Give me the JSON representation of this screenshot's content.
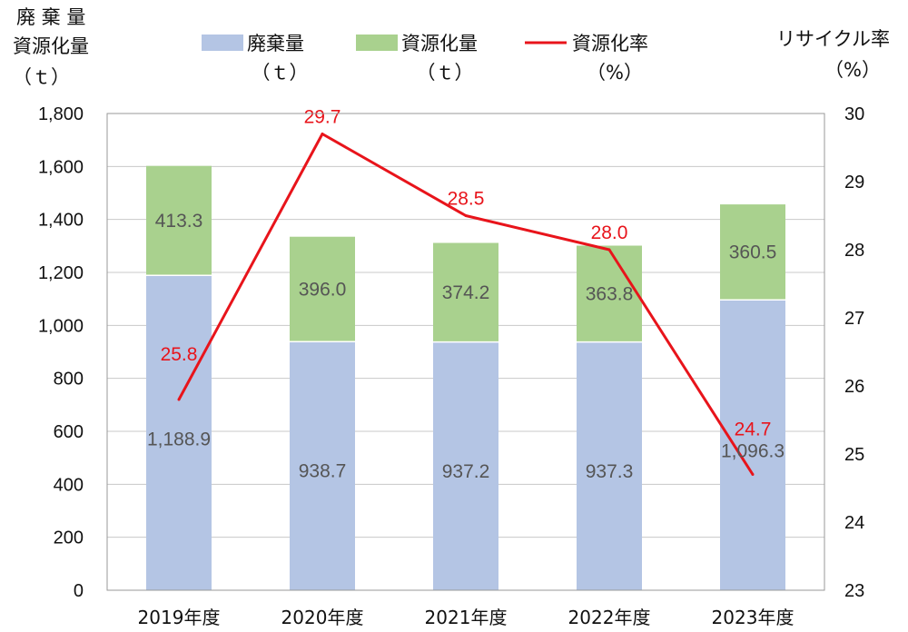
{
  "chart_data": {
    "type": "bar",
    "stacked": true,
    "categories": [
      "2019年度",
      "2020年度",
      "2021年度",
      "2022年度",
      "2023年度"
    ],
    "series": [
      {
        "name": "廃棄量",
        "unit": "（ｔ）",
        "type": "bar",
        "axis": "left",
        "color": "#b4c5e4",
        "values": [
          1188.9,
          938.7,
          937.2,
          937.3,
          1096.3
        ],
        "labels": [
          "1,188.9",
          "938.7",
          "937.2",
          "937.3",
          "1,096.3"
        ]
      },
      {
        "name": "資源化量",
        "unit": "（ｔ）",
        "type": "bar",
        "axis": "left",
        "color": "#a9d18e",
        "values": [
          413.3,
          396.0,
          374.2,
          363.8,
          360.5
        ],
        "labels": [
          "413.3",
          "396.0",
          "374.2",
          "363.8",
          "360.5"
        ]
      },
      {
        "name": "資源化率",
        "unit": "（%）",
        "type": "line",
        "axis": "right",
        "color": "#e8141b",
        "values": [
          25.8,
          29.7,
          28.5,
          28.0,
          24.7
        ],
        "labels": [
          "25.8",
          "29.7",
          "28.5",
          "28.0",
          "24.7"
        ]
      }
    ],
    "left_axis": {
      "title_lines": [
        "廃 棄 量",
        "資源化量",
        "（ｔ）"
      ],
      "ylim": [
        0,
        1800
      ],
      "ticks": [
        "0",
        "200",
        "400",
        "600",
        "800",
        "1,000",
        "1,200",
        "1,400",
        "1,600",
        "1,800"
      ]
    },
    "right_axis": {
      "title_lines": [
        "リサイクル率",
        "（%）"
      ],
      "ylim": [
        23,
        30
      ],
      "ticks": [
        "23",
        "24",
        "25",
        "26",
        "27",
        "28",
        "29",
        "30"
      ]
    },
    "legend_position": "top",
    "grid": true
  }
}
